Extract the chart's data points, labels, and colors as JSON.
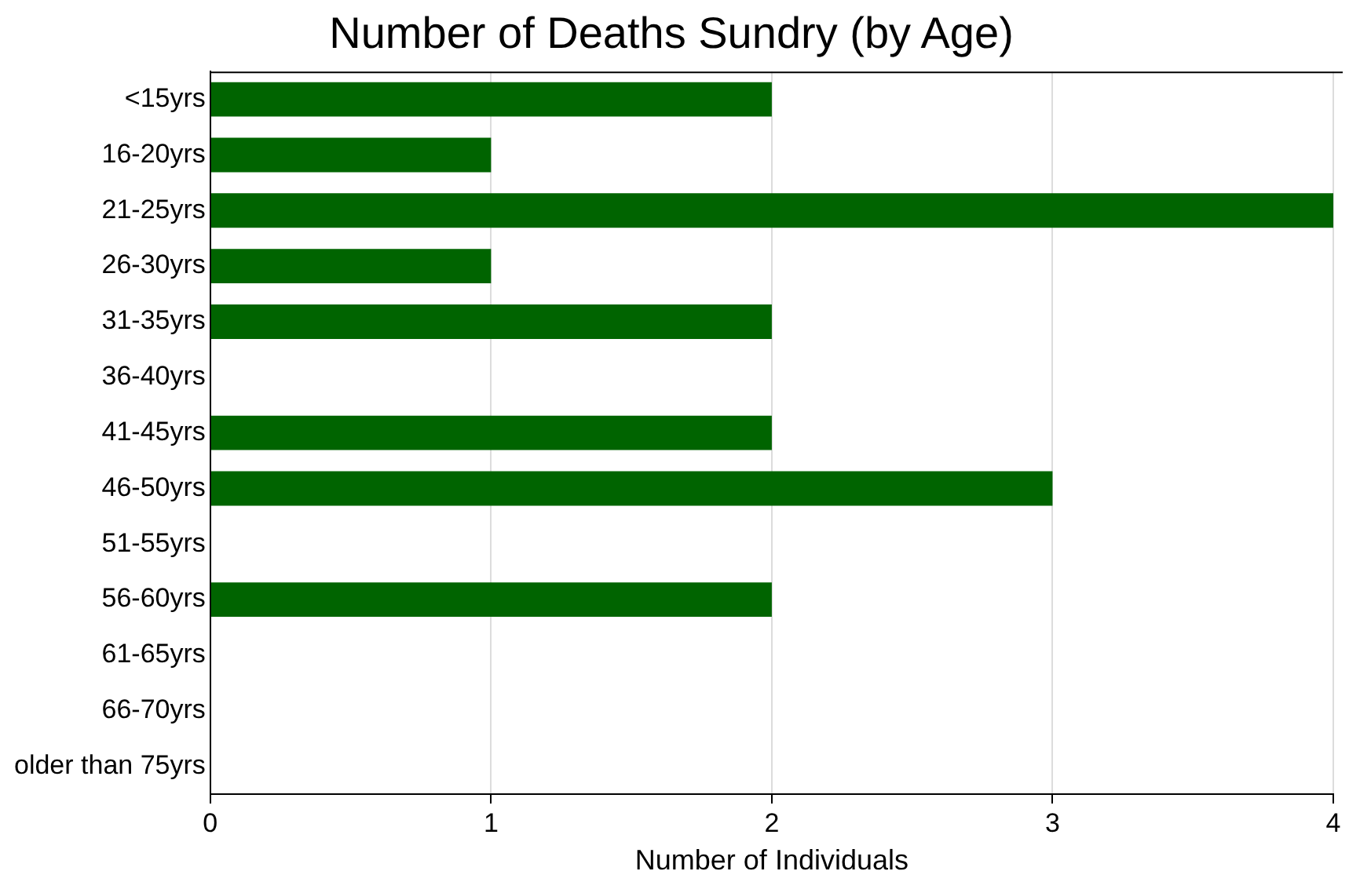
{
  "chart_data": {
    "type": "bar",
    "orientation": "horizontal",
    "title": "Number of Deaths Sundry (by Age)",
    "xlabel": "Number of Individuals",
    "categories": [
      "<15yrs",
      "16-20yrs",
      "21-25yrs",
      "26-30yrs",
      "31-35yrs",
      "36-40yrs",
      "41-45yrs",
      "46-50yrs",
      "51-55yrs",
      "56-60yrs",
      "61-65yrs",
      "66-70yrs",
      "older than 75yrs"
    ],
    "values": [
      2,
      1,
      4,
      1,
      2,
      0,
      2,
      3,
      0,
      2,
      0,
      0,
      0
    ],
    "color": "#006400",
    "xlim": [
      0,
      4
    ],
    "xticks": [
      0,
      1,
      2,
      3,
      4
    ],
    "grid": "x",
    "legend": false
  }
}
